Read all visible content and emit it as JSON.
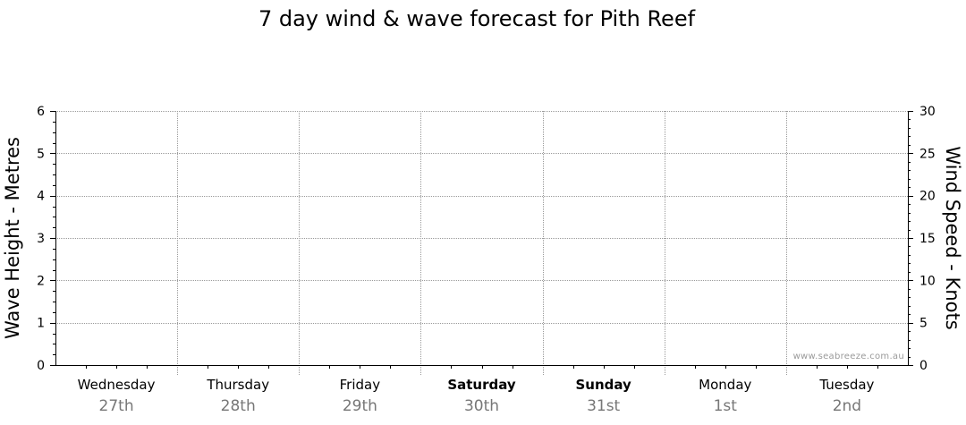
{
  "chart_data": {
    "type": "line",
    "title": "7 day wind & wave forecast for Pith Reef",
    "ylabel_left": "Wave Height - Metres",
    "ylabel_right": "Wind Speed - Knots",
    "ylim_left": [
      0,
      6
    ],
    "ylim_right": [
      0,
      30
    ],
    "yticks_left": [
      "0",
      "1",
      "2",
      "3",
      "4",
      "5",
      "6"
    ],
    "yticks_right": [
      "0",
      "5",
      "10",
      "15",
      "20",
      "25",
      "30"
    ],
    "grid": true,
    "days": [
      {
        "name": "Wednesday",
        "date": "27th",
        "weekend": false
      },
      {
        "name": "Thursday",
        "date": "28th",
        "weekend": false
      },
      {
        "name": "Friday",
        "date": "29th",
        "weekend": false
      },
      {
        "name": "Saturday",
        "date": "30th",
        "weekend": true
      },
      {
        "name": "Sunday",
        "date": "31st",
        "weekend": true
      },
      {
        "name": "Monday",
        "date": "1st",
        "weekend": false
      },
      {
        "name": "Tuesday",
        "date": "2nd",
        "weekend": false
      }
    ],
    "series": [],
    "watermark": "www.seabreeze.com.au"
  }
}
